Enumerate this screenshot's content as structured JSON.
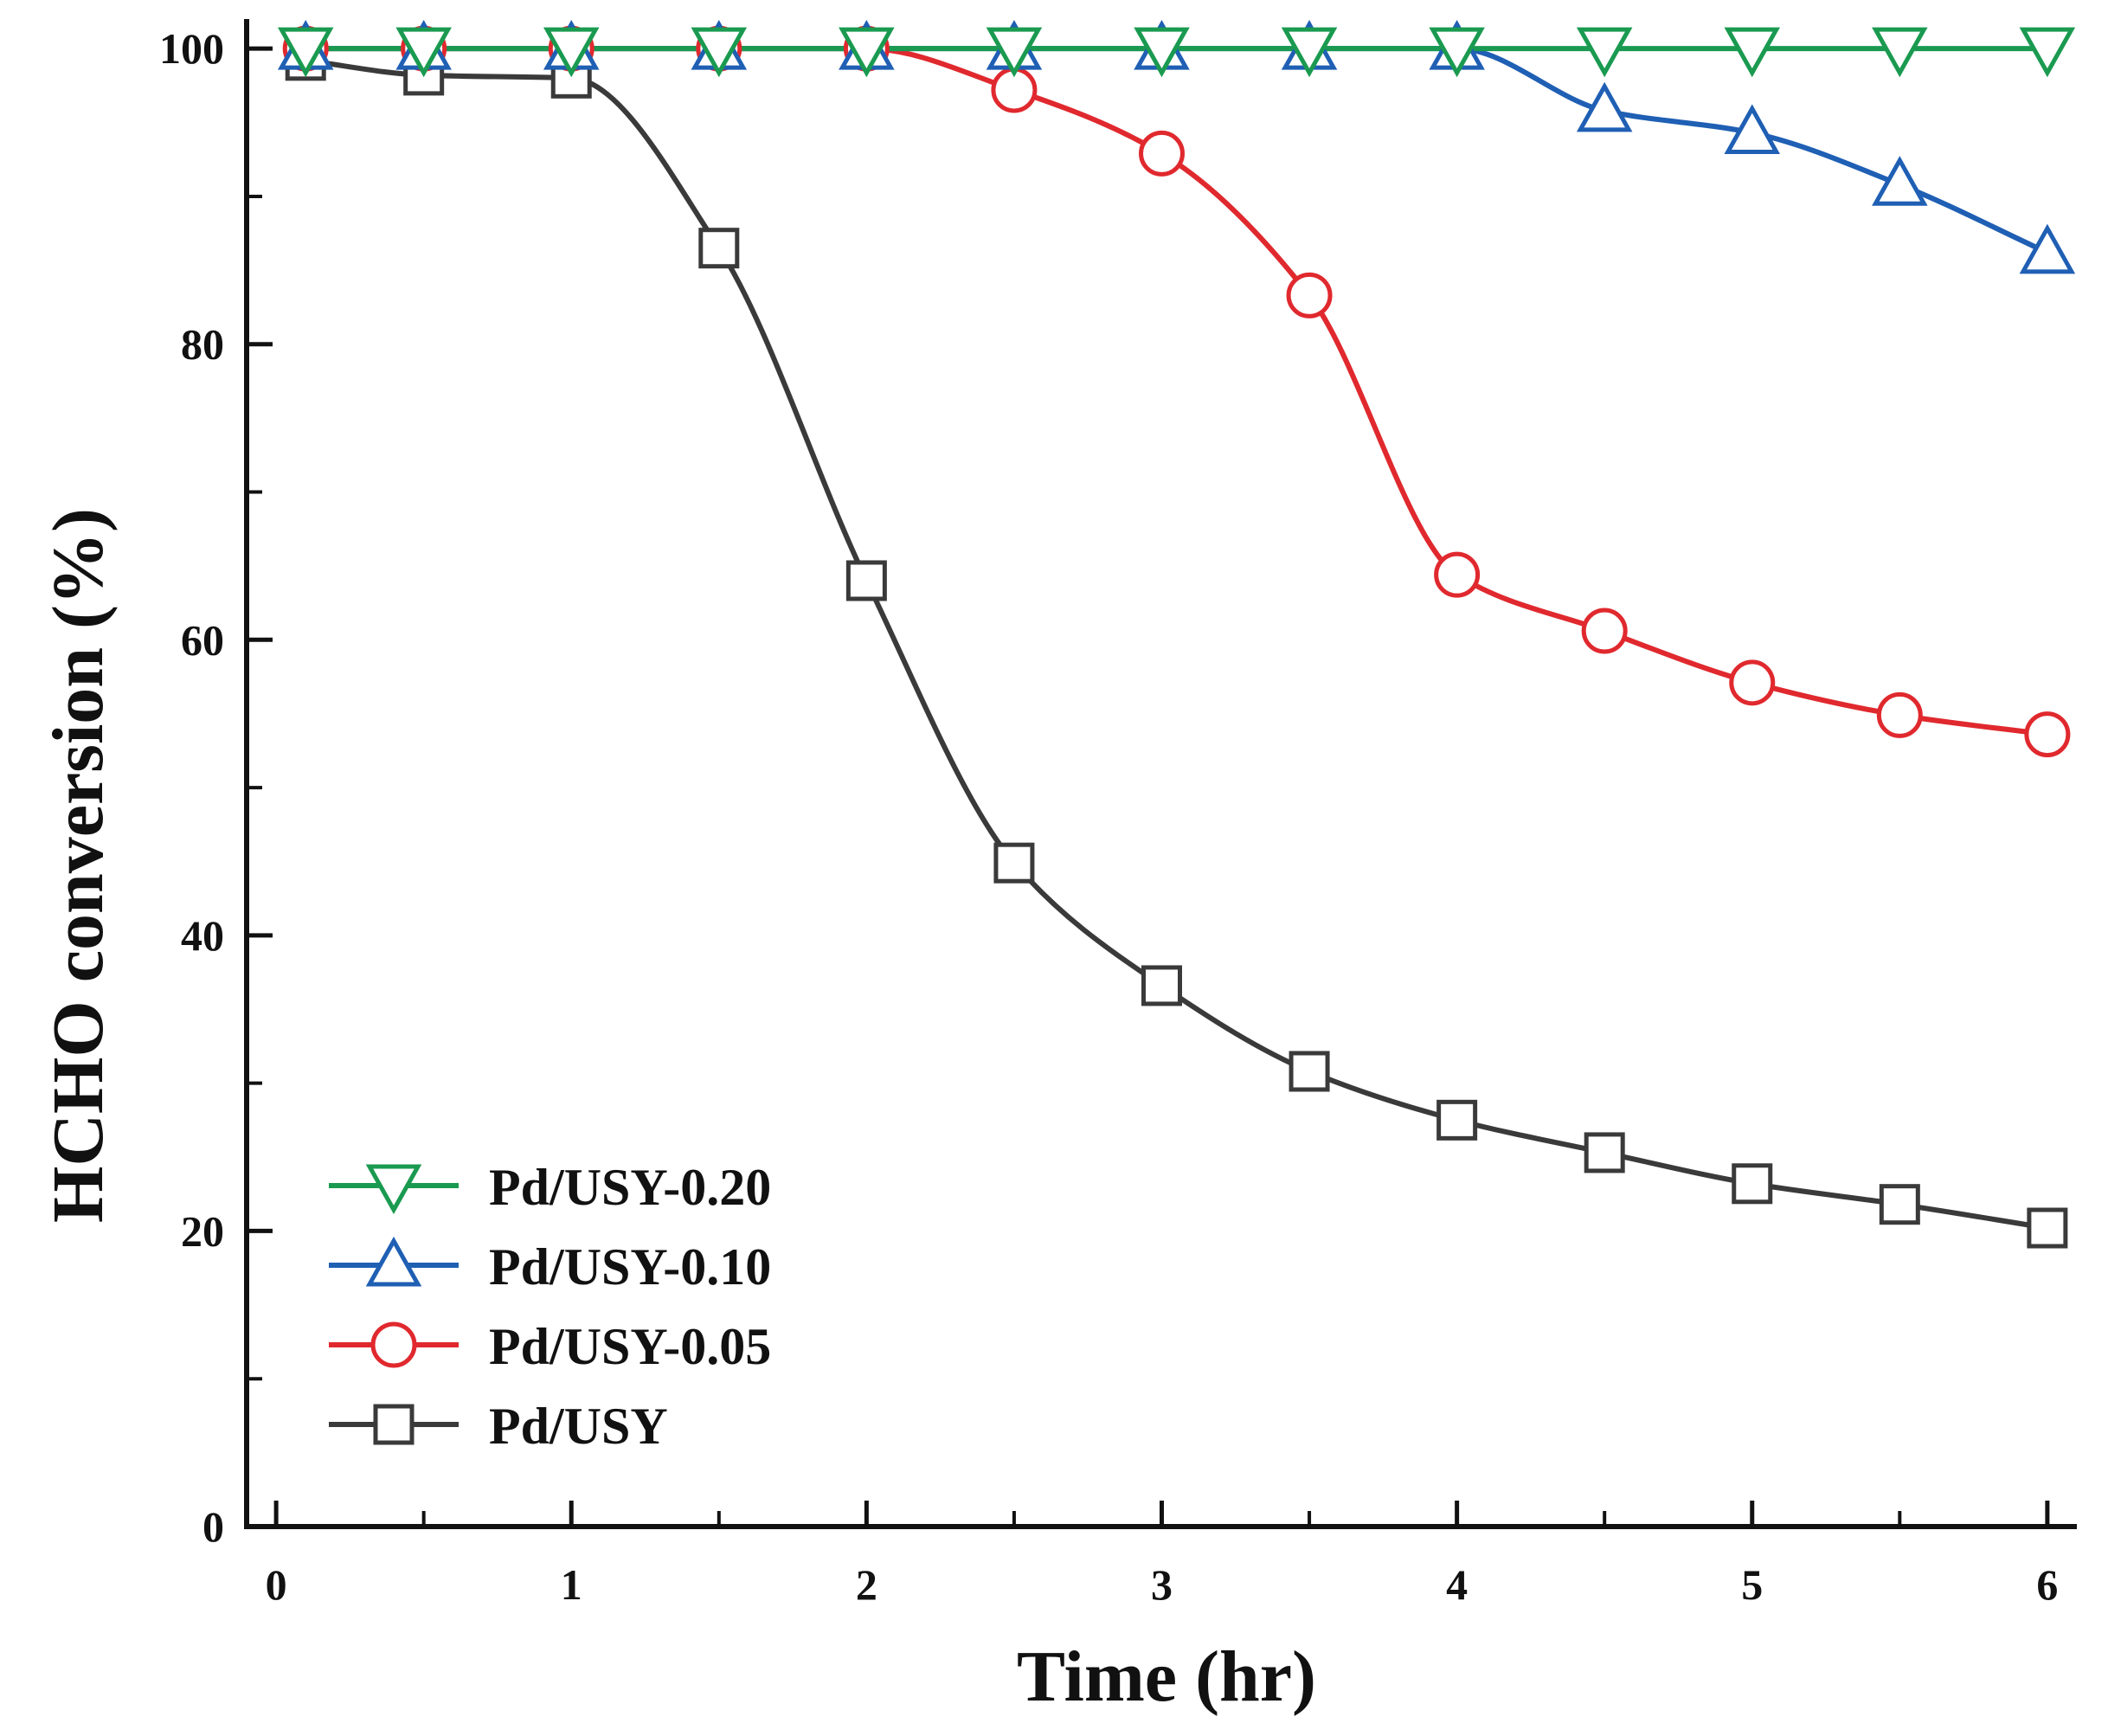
{
  "chart_data": {
    "type": "line",
    "xlabel": "Time (hr)",
    "ylabel": "HCHO conversion (%)",
    "xlim": [
      -0.1,
      6.1
    ],
    "ylim": [
      0,
      102
    ],
    "x_ticks": [
      0,
      1,
      2,
      3,
      4,
      5,
      6
    ],
    "y_ticks": [
      0,
      20,
      40,
      60,
      80,
      100
    ],
    "x_tick_labels": [
      "0",
      "1",
      "2",
      "3",
      "4",
      "5",
      "6"
    ],
    "y_tick_labels": [
      "0",
      "20",
      "40",
      "60",
      "80",
      "100"
    ],
    "x_minor_ticks": [
      0.5,
      1.5,
      2.5,
      3.5,
      4.5,
      5.5
    ],
    "y_minor_ticks": [
      10,
      30,
      50,
      70,
      90
    ],
    "grid": false,
    "legend_position": "bottom-left",
    "series": [
      {
        "name": "Pd/USY-0.20",
        "color": "#1a9a50",
        "marker": "triangle-down",
        "x": [
          0.1,
          0.5,
          1.0,
          1.5,
          2.0,
          2.5,
          3.0,
          3.5,
          4.0,
          4.5,
          5.0,
          5.5,
          6.0
        ],
        "y": [
          100,
          100,
          100,
          100,
          100,
          100,
          100,
          100,
          100,
          100,
          100,
          100,
          100
        ]
      },
      {
        "name": "Pd/USY-0.10",
        "color": "#1f5fb4",
        "marker": "triangle-up",
        "x": [
          0.1,
          0.5,
          1.0,
          1.5,
          2.0,
          2.5,
          3.0,
          3.5,
          4.0,
          4.5,
          5.0,
          5.5,
          6.0
        ],
        "y": [
          100,
          100,
          100,
          100,
          100,
          100,
          100,
          100,
          100,
          95.8,
          94.3,
          90.8,
          86.2
        ]
      },
      {
        "name": "Pd/USY-0.05",
        "color": "#e0292e",
        "marker": "circle",
        "x": [
          0.1,
          0.5,
          1.0,
          1.5,
          2.0,
          2.5,
          3.0,
          3.5,
          4.0,
          4.5,
          5.0,
          5.5,
          6.0
        ],
        "y": [
          100,
          100,
          100,
          100,
          100,
          97.2,
          92.9,
          83.3,
          64.4,
          60.6,
          57.1,
          54.9,
          53.6
        ]
      },
      {
        "name": "Pd/USY",
        "color": "#3a3a3a",
        "marker": "square",
        "x": [
          0.1,
          0.5,
          1.0,
          1.5,
          2.0,
          2.5,
          3.0,
          3.5,
          4.0,
          4.5,
          5.0,
          5.5,
          6.0
        ],
        "y": [
          99.2,
          98.2,
          98.0,
          86.5,
          64.0,
          44.9,
          36.6,
          30.8,
          27.5,
          25.3,
          23.2,
          21.8,
          20.2
        ]
      }
    ]
  }
}
